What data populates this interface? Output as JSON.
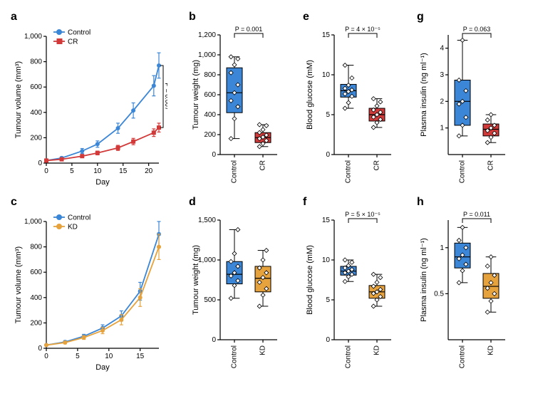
{
  "colors": {
    "control": "#3b86d6",
    "cr": "#d23a3a",
    "kd": "#e6a23c",
    "axis": "#000000",
    "bg": "#ffffff",
    "diamond_fill": "#ffffff"
  },
  "panels": {
    "a": {
      "label": "a",
      "type": "line",
      "ylabel": "Tumour volume (mm³)",
      "xlabel": "Day",
      "xlim": [
        0,
        22
      ],
      "xticks": [
        0,
        5,
        10,
        15,
        20
      ],
      "ylim": [
        0,
        1000
      ],
      "yticks": [
        0,
        200,
        400,
        600,
        800,
        1000
      ],
      "legend": [
        {
          "label": "Control",
          "color": "#3b86d6",
          "marker": "circle"
        },
        {
          "label": "CR",
          "color": "#d23a3a",
          "marker": "square"
        }
      ],
      "pvalue": "P = 0.007",
      "series": [
        {
          "name": "Control",
          "color": "#3b86d6",
          "marker": "circle",
          "x": [
            0,
            3,
            7,
            10,
            14,
            17,
            21,
            22
          ],
          "y": [
            20,
            40,
            95,
            150,
            275,
            415,
            610,
            770
          ],
          "err": [
            0,
            10,
            20,
            25,
            40,
            60,
            80,
            100
          ]
        },
        {
          "name": "CR",
          "color": "#d23a3a",
          "marker": "square",
          "x": [
            0,
            3,
            7,
            10,
            14,
            17,
            21,
            22
          ],
          "y": [
            20,
            30,
            55,
            80,
            120,
            170,
            240,
            280
          ],
          "err": [
            0,
            8,
            12,
            15,
            20,
            25,
            30,
            35
          ]
        }
      ]
    },
    "b": {
      "label": "b",
      "type": "box",
      "ylabel": "Tumour weight (mg)",
      "ylim": [
        0,
        1200
      ],
      "yticks": [
        0,
        200,
        400,
        600,
        800,
        1000,
        1200
      ],
      "categories": [
        "Control",
        "CR"
      ],
      "pvalue": "P = 0.001",
      "boxes": [
        {
          "color": "#3b86d6",
          "q1": 420,
          "median": 620,
          "q3": 870,
          "whisker_lo": 160,
          "whisker_hi": 980,
          "points": [
            160,
            360,
            480,
            540,
            620,
            700,
            820,
            900,
            960,
            980
          ]
        },
        {
          "color": "#d23a3a",
          "q1": 120,
          "median": 170,
          "q3": 220,
          "whisker_lo": 80,
          "whisker_hi": 300,
          "points": [
            80,
            110,
            140,
            160,
            175,
            195,
            220,
            250,
            290,
            300
          ]
        }
      ]
    },
    "e": {
      "label": "e",
      "type": "box",
      "ylabel": "Blood glucose (mM)",
      "ylim": [
        0,
        15
      ],
      "yticks": [
        0,
        5,
        10,
        15
      ],
      "categories": [
        "Control",
        "CR"
      ],
      "pvalue": "P = 4 × 10⁻⁵",
      "boxes": [
        {
          "color": "#3b86d6",
          "q1": 7.2,
          "median": 8.0,
          "q3": 8.8,
          "whisker_lo": 5.8,
          "whisker_hi": 11.2,
          "points": [
            5.8,
            6.5,
            7.3,
            7.6,
            7.9,
            8.1,
            8.3,
            8.7,
            9.6,
            11.2
          ]
        },
        {
          "color": "#d23a3a",
          "q1": 4.2,
          "median": 5.0,
          "q3": 5.8,
          "whisker_lo": 3.4,
          "whisker_hi": 7.0,
          "points": [
            3.4,
            4.0,
            4.4,
            4.7,
            5.0,
            5.3,
            5.6,
            6.1,
            6.6,
            7.0
          ]
        }
      ]
    },
    "g": {
      "label": "g",
      "type": "box",
      "ylabel": "Plasma insulin (ng ml⁻¹)",
      "ylim": [
        0,
        4.5
      ],
      "yticks": [
        1,
        2,
        3,
        4
      ],
      "categories": [
        "Control",
        "CR"
      ],
      "pvalue": "P = 0.063",
      "boxes": [
        {
          "color": "#3b86d6",
          "q1": 1.1,
          "median": 2.0,
          "q3": 2.8,
          "whisker_lo": 0.7,
          "whisker_hi": 4.3,
          "points": [
            0.7,
            1.1,
            1.4,
            1.9,
            2.0,
            2.4,
            2.8,
            4.3
          ]
        },
        {
          "color": "#d23a3a",
          "q1": 0.7,
          "median": 0.95,
          "q3": 1.15,
          "whisker_lo": 0.45,
          "whisker_hi": 1.5,
          "points": [
            0.45,
            0.65,
            0.8,
            0.9,
            1.0,
            1.1,
            1.3,
            1.5
          ]
        }
      ]
    },
    "c": {
      "label": "c",
      "type": "line",
      "ylabel": "Tumour volume (mm³)",
      "xlabel": "Day",
      "xlim": [
        0,
        18
      ],
      "xticks": [
        0,
        5,
        10,
        15
      ],
      "ylim": [
        0,
        1000
      ],
      "yticks": [
        0,
        200,
        400,
        600,
        800,
        1000
      ],
      "legend": [
        {
          "label": "Control",
          "color": "#3b86d6",
          "marker": "circle"
        },
        {
          "label": "KD",
          "color": "#e6a23c",
          "marker": "circle"
        }
      ],
      "series": [
        {
          "name": "Control",
          "color": "#3b86d6",
          "marker": "circle",
          "x": [
            0,
            3,
            6,
            9,
            12,
            15,
            18
          ],
          "y": [
            25,
            50,
            95,
            160,
            255,
            450,
            900
          ],
          "err": [
            0,
            10,
            15,
            25,
            40,
            70,
            100
          ]
        },
        {
          "name": "KD",
          "color": "#e6a23c",
          "marker": "circle",
          "x": [
            0,
            3,
            6,
            9,
            12,
            15,
            18
          ],
          "y": [
            25,
            45,
            85,
            140,
            225,
            400,
            800
          ],
          "err": [
            0,
            10,
            15,
            25,
            40,
            70,
            100
          ]
        }
      ]
    },
    "d": {
      "label": "d",
      "type": "box",
      "ylabel": "Tumour weight (mg)",
      "ylim": [
        0,
        1500
      ],
      "yticks": [
        0,
        500,
        1000,
        1500
      ],
      "categories": [
        "Control",
        "KD"
      ],
      "boxes": [
        {
          "color": "#3b86d6",
          "q1": 700,
          "median": 820,
          "q3": 980,
          "whisker_lo": 520,
          "whisker_hi": 1380,
          "points": [
            520,
            680,
            740,
            800,
            840,
            920,
            980,
            1080,
            1380
          ]
        },
        {
          "color": "#e6a23c",
          "q1": 600,
          "median": 770,
          "q3": 920,
          "whisker_lo": 420,
          "whisker_hi": 1120,
          "points": [
            420,
            560,
            640,
            720,
            780,
            840,
            900,
            1000,
            1120
          ]
        }
      ]
    },
    "f": {
      "label": "f",
      "type": "box",
      "ylabel": "Blood glucose (mM)",
      "ylim": [
        0,
        15
      ],
      "yticks": [
        0,
        5,
        10,
        15
      ],
      "categories": [
        "Control",
        "KD"
      ],
      "pvalue": "P = 5 × 10⁻⁵",
      "boxes": [
        {
          "color": "#3b86d6",
          "q1": 8.1,
          "median": 8.6,
          "q3": 9.2,
          "whisker_lo": 7.3,
          "whisker_hi": 10.0,
          "points": [
            7.3,
            7.9,
            8.2,
            8.4,
            8.6,
            8.8,
            9.0,
            9.3,
            9.7,
            10.0
          ]
        },
        {
          "color": "#e6a23c",
          "q1": 5.2,
          "median": 6.0,
          "q3": 6.8,
          "whisker_lo": 4.2,
          "whisker_hi": 8.2,
          "points": [
            4.2,
            5.0,
            5.4,
            5.8,
            6.0,
            6.3,
            6.7,
            7.2,
            7.8,
            8.2
          ]
        }
      ]
    },
    "h": {
      "label": "h",
      "type": "box",
      "ylabel": "Plasma insulin (ng ml⁻¹)",
      "ylim": [
        0,
        1.3
      ],
      "yticks": [
        0.5,
        1.0
      ],
      "categories": [
        "Control",
        "KD"
      ],
      "pvalue": "P = 0.011",
      "boxes": [
        {
          "color": "#3b86d6",
          "q1": 0.78,
          "median": 0.9,
          "q3": 1.05,
          "whisker_lo": 0.62,
          "whisker_hi": 1.22,
          "points": [
            0.62,
            0.75,
            0.82,
            0.88,
            0.92,
            1.0,
            1.08,
            1.22
          ]
        },
        {
          "color": "#e6a23c",
          "q1": 0.45,
          "median": 0.58,
          "q3": 0.72,
          "whisker_lo": 0.3,
          "whisker_hi": 0.9,
          "points": [
            0.3,
            0.42,
            0.5,
            0.56,
            0.62,
            0.7,
            0.8,
            0.9
          ]
        }
      ]
    }
  },
  "layout_order": [
    "a",
    "b",
    "e",
    "g",
    "c",
    "d",
    "f",
    "h"
  ]
}
